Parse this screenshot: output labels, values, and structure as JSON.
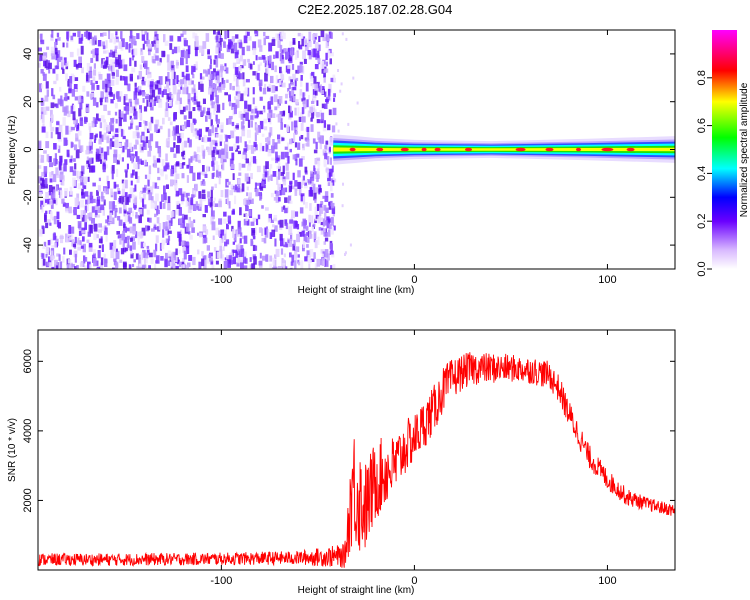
{
  "title": "C2E2.2025.187.02.28.G04",
  "chart_data": [
    {
      "type": "heatmap",
      "title": "C2E2.2025.187.02.28.G04",
      "xlabel": "Height of straight line (km)",
      "ylabel": "Frequency (Hz)",
      "xlim": [
        -195,
        135
      ],
      "ylim": [
        -50,
        50
      ],
      "x_ticks": [
        -100,
        0,
        100
      ],
      "x_tick_labels": [
        "-100",
        "0",
        "100"
      ],
      "y_ticks": [
        -40,
        -20,
        0,
        20,
        40
      ],
      "y_tick_labels": [
        "-40",
        "-20",
        "0",
        "20",
        "40"
      ],
      "noise_region_x": [
        -195,
        -42
      ],
      "signal_region_x": [
        -42,
        135
      ],
      "signal_center_frequency": 0,
      "signal_band": [
        {
          "x": -42,
          "half_width": 4
        },
        {
          "x": -30,
          "half_width": 3.5
        },
        {
          "x": -20,
          "half_width": 3
        },
        {
          "x": 0,
          "half_width": 2.5
        },
        {
          "x": 40,
          "half_width": 2.2
        },
        {
          "x": 90,
          "half_width": 2.8
        },
        {
          "x": 135,
          "half_width": 3.5
        }
      ],
      "colorbar": {
        "label": "Normalized spectral amplitude",
        "range": [
          0.0,
          1.0
        ],
        "ticks": [
          0.0,
          0.2,
          0.4,
          0.6,
          0.8
        ],
        "tick_labels": [
          "0.0",
          "0.2",
          "0.4",
          "0.6",
          "0.8"
        ],
        "colors": [
          "#ffffff",
          "#8a2be2",
          "#0000ff",
          "#00ffff",
          "#00ff00",
          "#ffff00",
          "#ff0000",
          "#ff00ff"
        ]
      },
      "grid": false
    },
    {
      "type": "line",
      "xlabel": "Height of straight line (km)",
      "ylabel": "SNR (10 * v/v)",
      "xlim": [
        -195,
        135
      ],
      "ylim": [
        0,
        6900
      ],
      "x_ticks": [
        -100,
        0,
        100
      ],
      "x_tick_labels": [
        "-100",
        "0",
        "100"
      ],
      "y_ticks": [
        2000,
        4000,
        6000
      ],
      "y_tick_labels": [
        "2000",
        "4000",
        "6000"
      ],
      "line_color": "#ff0000",
      "grid": false,
      "series": [
        {
          "x": [
            -195,
            -150,
            -100,
            -60,
            -36,
            -32,
            -28,
            -25,
            -20,
            -15,
            -10,
            -5,
            0,
            5,
            10,
            15,
            20,
            25,
            30,
            35,
            40,
            50,
            60,
            70,
            75,
            80,
            90,
            100,
            110,
            120,
            135
          ],
          "y": [
            300,
            300,
            320,
            350,
            400,
            2500,
            2000,
            1800,
            2600,
            2800,
            3000,
            3500,
            3800,
            4200,
            4600,
            5200,
            5500,
            5700,
            5800,
            5800,
            5800,
            5800,
            5750,
            5600,
            5200,
            4500,
            3300,
            2600,
            2100,
            1900,
            1700
          ],
          "noise_amplitude": [
            180,
            180,
            180,
            200,
            350,
            1800,
            1600,
            1300,
            1200,
            1000,
            900,
            800,
            700,
            700,
            700,
            650,
            600,
            500,
            500,
            450,
            450,
            400,
            400,
            400,
            400,
            400,
            350,
            300,
            250,
            200,
            180
          ]
        }
      ]
    }
  ]
}
